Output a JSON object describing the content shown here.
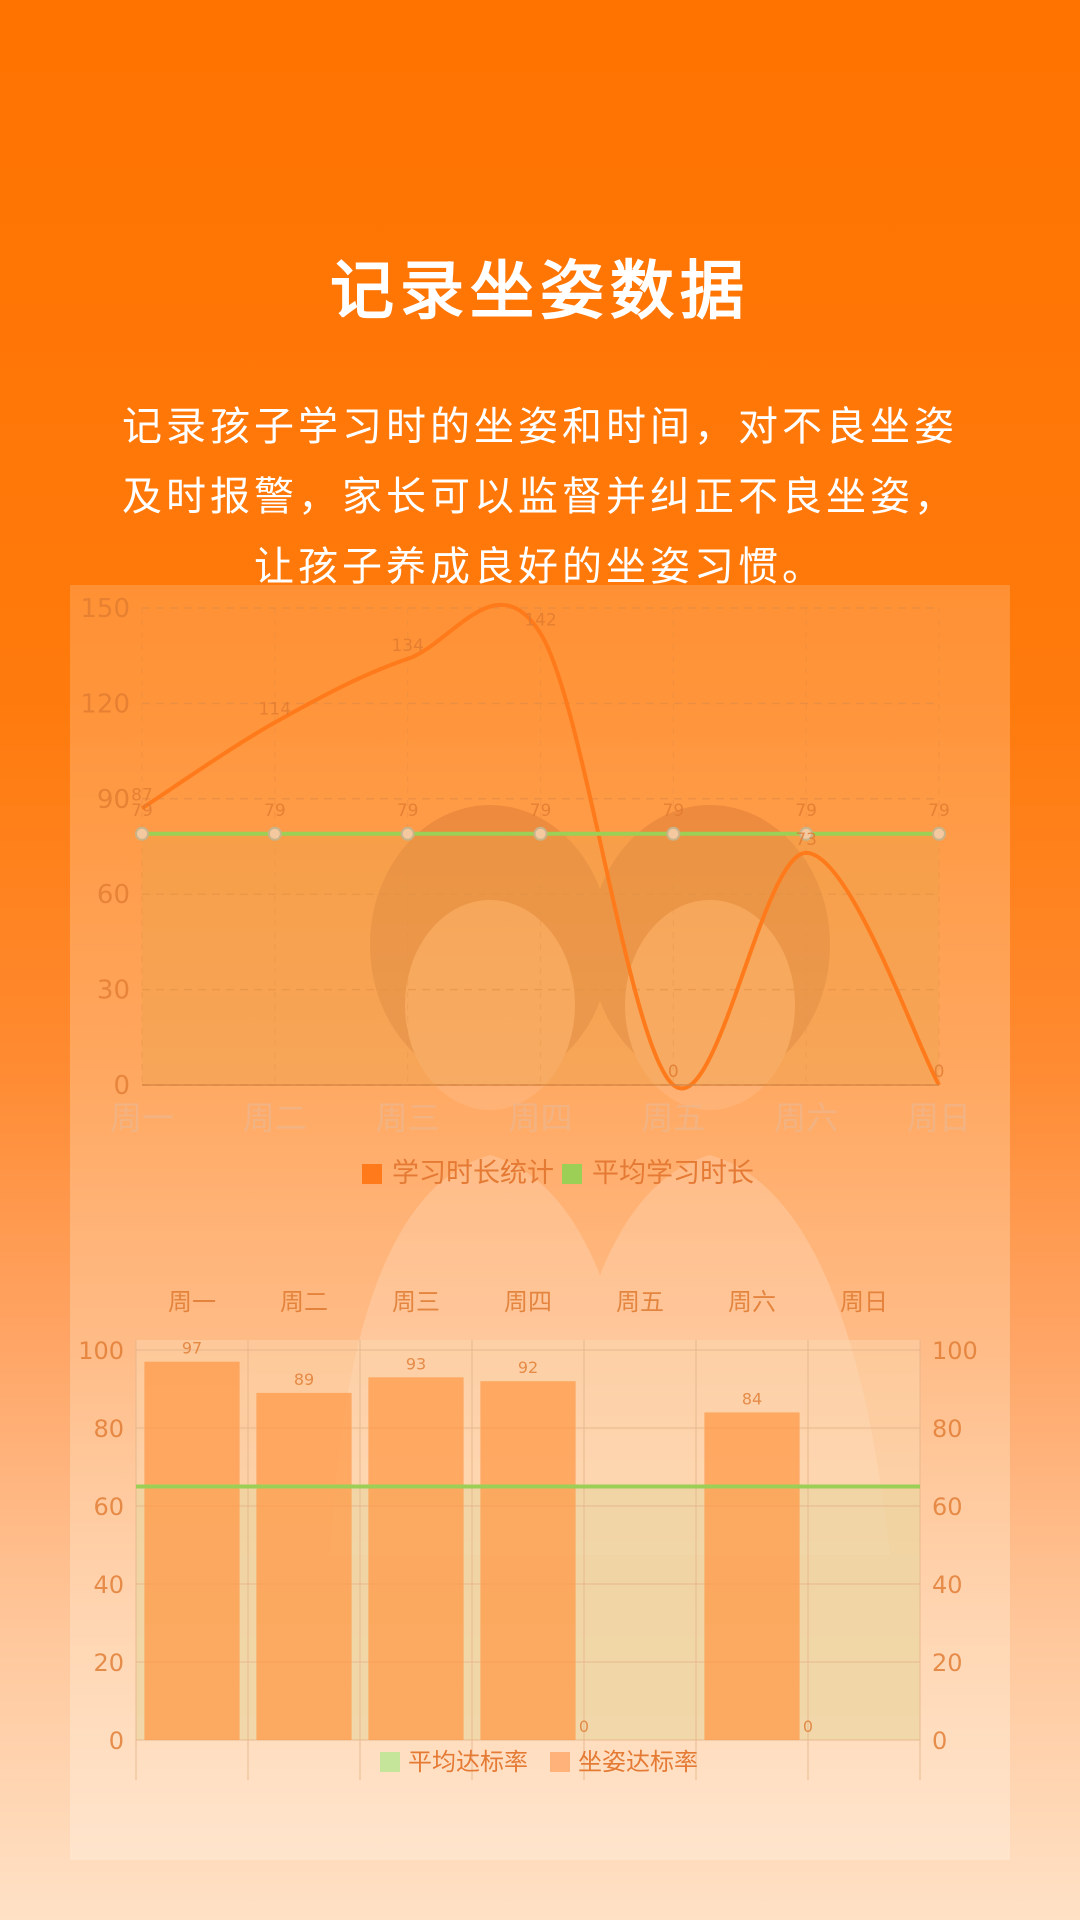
{
  "intro": {
    "title": "记录坐姿数据",
    "lines": [
      "记录孩子学习时的坐姿和时间，对不良坐姿",
      "及时报警，家长可以监督并纠正不良坐姿，",
      "让孩子养成良好的坐姿习惯。"
    ]
  },
  "colors": {
    "accent": "#ff7300",
    "study_line": "#ff7a1a",
    "avg_line": "#9ccf55",
    "bar": "#ff9a4a"
  },
  "chart_data": [
    {
      "type": "line",
      "categories": [
        "周一",
        "周二",
        "周三",
        "周四",
        "周五",
        "周六",
        "周日"
      ],
      "series": [
        {
          "name": "学习时长统计",
          "values": [
            87,
            114,
            134,
            142,
            0,
            73,
            0
          ]
        },
        {
          "name": "平均学习时长",
          "values": [
            79,
            79,
            79,
            79,
            79,
            79,
            79
          ]
        }
      ],
      "yticks": [
        0,
        30,
        60,
        90,
        120,
        150
      ],
      "ylim": [
        0,
        150
      ],
      "grid": true,
      "legend": "bottom"
    },
    {
      "type": "bar",
      "categories": [
        "周一",
        "周二",
        "周三",
        "周四",
        "周五",
        "周六",
        "周日"
      ],
      "series": [
        {
          "name": "坐姿达标率",
          "values": [
            97,
            89,
            93,
            92,
            0,
            84,
            0
          ]
        }
      ],
      "average": {
        "name": "平均达标率",
        "value": 65
      },
      "yticks": [
        0,
        20,
        40,
        60,
        80,
        100
      ],
      "ylim": [
        0,
        100
      ],
      "grid": true,
      "legend": "bottom"
    }
  ]
}
